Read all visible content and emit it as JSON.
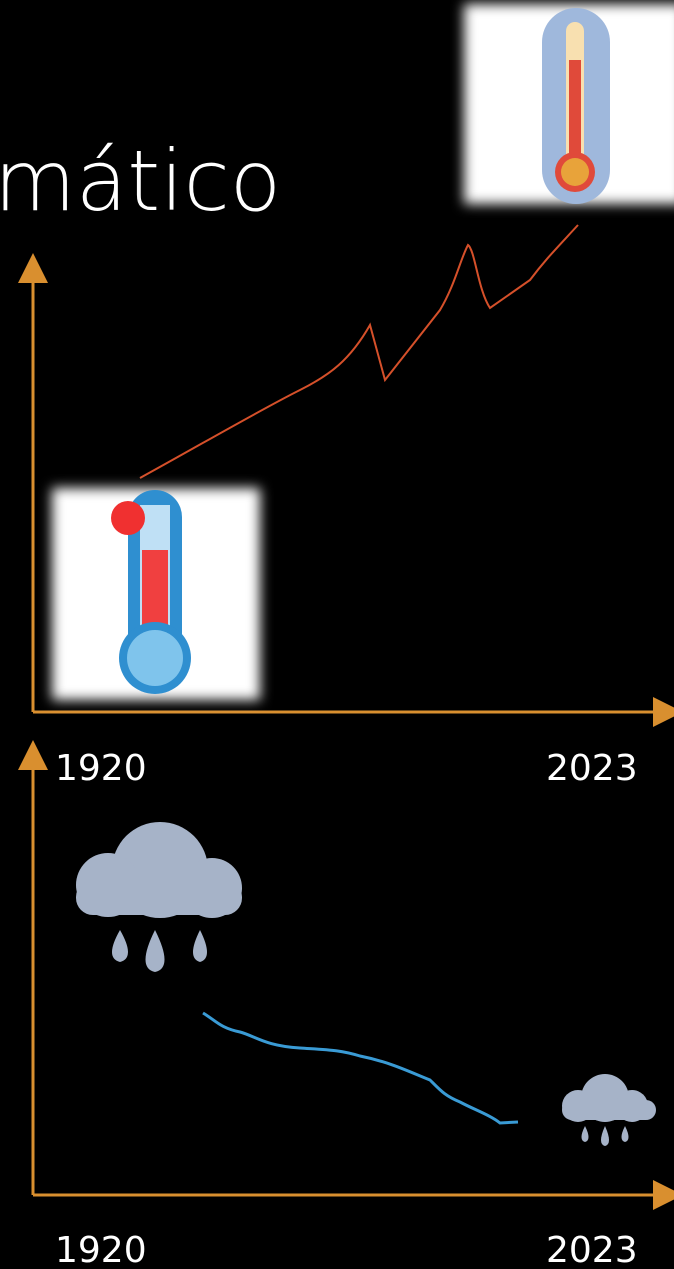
{
  "title": "mático",
  "charts": [
    {
      "x_start": "1920",
      "x_end": "2023"
    },
    {
      "x_start": "1920",
      "x_end": "2023"
    }
  ]
}
